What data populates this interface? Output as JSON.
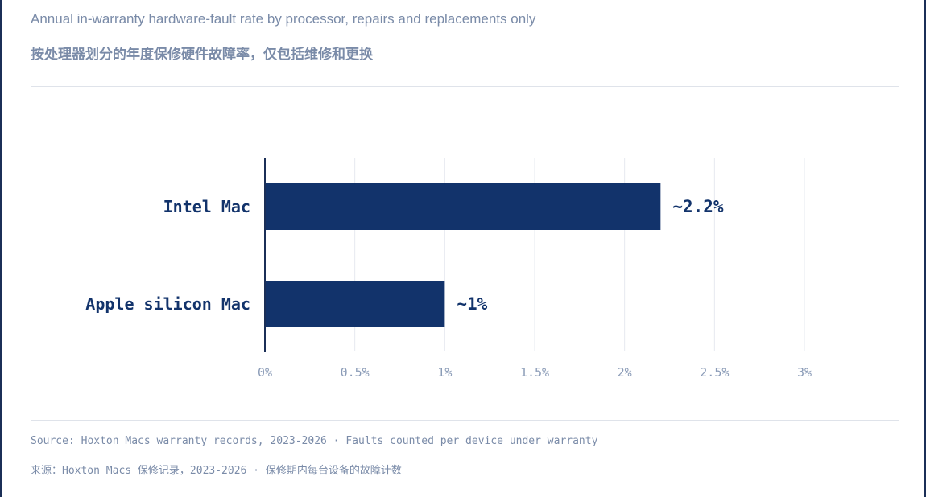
{
  "header": {
    "title_en": "Annual in-warranty hardware-fault rate by processor, repairs and replacements only",
    "title_zh": "按处理器划分的年度保修硬件故障率，仅包括维修和更换"
  },
  "footer": {
    "source_en": "Source: Hoxton Macs warranty records, 2023-2026 · Faults counted per device under warranty",
    "source_zh": "来源：Hoxton Macs 保修记录，2023-2026 · 保修期内每台设备的故障计数"
  },
  "colors": {
    "bar": "#12336b",
    "axis": "#1b2f57",
    "grid": "#e6e9ef",
    "label": "#12336b",
    "tick": "#8a9bb7"
  },
  "chart_data": {
    "type": "bar",
    "orientation": "horizontal",
    "categories": [
      "Intel Mac",
      "Apple silicon Mac"
    ],
    "values": [
      2.2,
      1.0
    ],
    "value_labels": [
      "~2.2%",
      "~1%"
    ],
    "xlim": [
      0,
      3
    ],
    "xticks": [
      0,
      0.5,
      1,
      1.5,
      2,
      2.5,
      3
    ],
    "xtick_labels": [
      "0%",
      "0.5%",
      "1%",
      "1.5%",
      "2%",
      "2.5%",
      "3%"
    ],
    "grid": true,
    "legend": "none",
    "title": "Annual in-warranty hardware-fault rate by processor, repairs and replacements only"
  }
}
